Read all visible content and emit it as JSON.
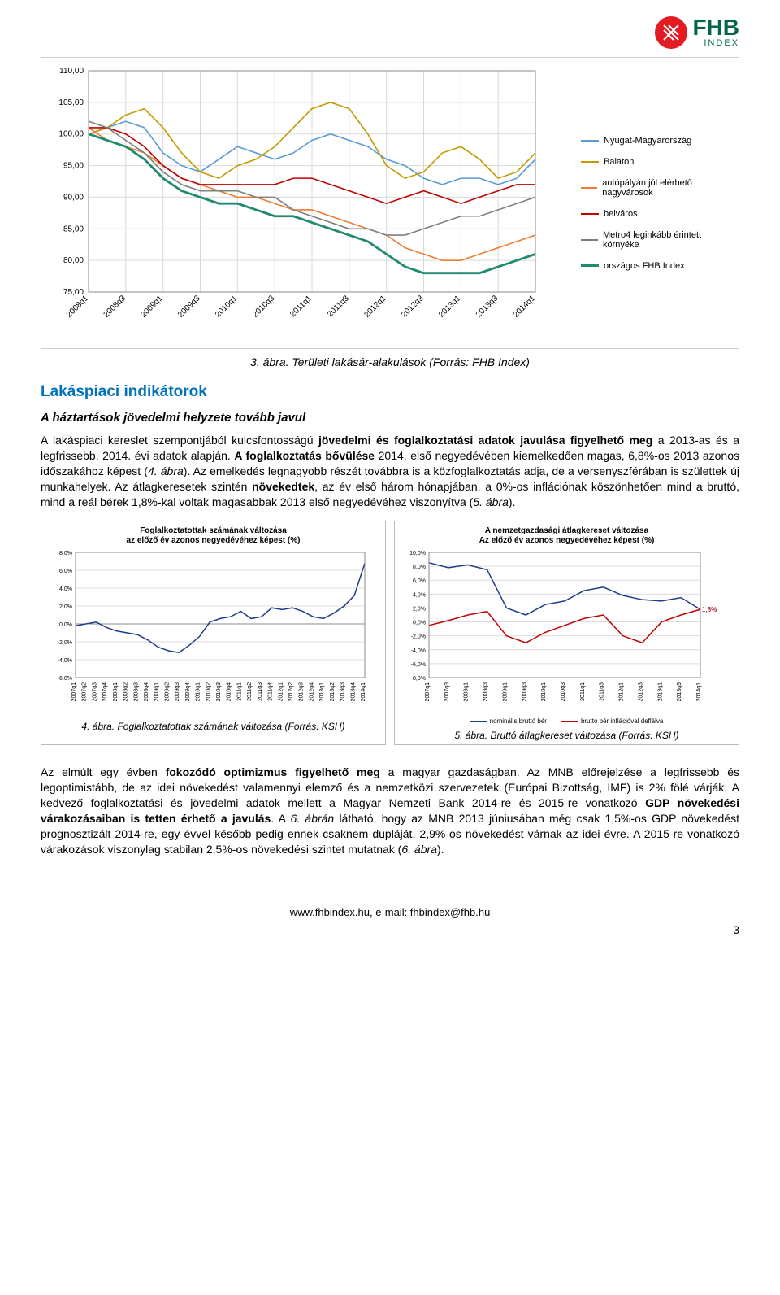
{
  "logo": {
    "brand": "FHB",
    "sub": "INDEX"
  },
  "chart3": {
    "type": "line",
    "ylim": [
      75,
      110
    ],
    "ytick_step": 5,
    "yticks": [
      "75,00",
      "80,00",
      "85,00",
      "90,00",
      "95,00",
      "100,00",
      "105,00",
      "110,00"
    ],
    "xlabels": [
      "2008q1",
      "2008q3",
      "2009q1",
      "2009q3",
      "2010q1",
      "2010q3",
      "2011q1",
      "2011q3",
      "2012q1",
      "2012q3",
      "2013q1",
      "2013q3",
      "2014q1"
    ],
    "xrot_deg": -45,
    "grid_color": "#d9d9d9",
    "background_color": "#ffffff",
    "lines": {
      "nyugat": {
        "label": "Nyugat-Magyarország",
        "color": "#5b9bd5",
        "width": 1.6,
        "values": [
          100,
          101,
          102,
          101,
          97,
          95,
          94,
          96,
          98,
          97,
          96,
          97,
          99,
          100,
          99,
          98,
          96,
          95,
          93,
          92,
          93,
          93,
          92,
          93,
          96
        ]
      },
      "balaton": {
        "label": "Balaton",
        "color": "#c49a00",
        "width": 1.6,
        "values": [
          100,
          101,
          103,
          104,
          101,
          97,
          94,
          93,
          95,
          96,
          98,
          101,
          104,
          105,
          104,
          100,
          95,
          93,
          94,
          97,
          98,
          96,
          93,
          94,
          97
        ]
      },
      "autopalya": {
        "label": "autópályán jól elérhető nagyvárosok",
        "color": "#ed7d31",
        "width": 1.6,
        "values": [
          101,
          99,
          98,
          97,
          95,
          93,
          92,
          91,
          90,
          90,
          89,
          88,
          88,
          87,
          86,
          85,
          84,
          82,
          81,
          80,
          80,
          81,
          82,
          83,
          84
        ]
      },
      "belvaros": {
        "label": "belváros",
        "color": "#c00000",
        "width": 1.6,
        "values": [
          101,
          101,
          100,
          98,
          95,
          93,
          92,
          92,
          92,
          92,
          92,
          93,
          93,
          92,
          91,
          90,
          89,
          90,
          91,
          90,
          89,
          90,
          91,
          92,
          92
        ]
      },
      "metro4": {
        "label": "Metro4 leginkább érintett környéke",
        "color": "#7f7f7f",
        "width": 1.6,
        "values": [
          102,
          101,
          99,
          97,
          94,
          92,
          91,
          91,
          91,
          90,
          90,
          88,
          87,
          86,
          85,
          85,
          84,
          84,
          85,
          86,
          87,
          87,
          88,
          89,
          90
        ]
      },
      "orszagos": {
        "label": "országos FHB Index",
        "color": "#1f8a70",
        "width": 2.8,
        "values": [
          100,
          99,
          98,
          96,
          93,
          91,
          90,
          89,
          89,
          88,
          87,
          87,
          86,
          85,
          84,
          83,
          81,
          79,
          78,
          78,
          78,
          78,
          79,
          80,
          81
        ]
      }
    },
    "legend_fontsize": 11,
    "tick_fontsize": 10
  },
  "caption3": "3. ábra. Területi lakásár-alakulások (Forrás: FHB Index)",
  "section_title": "Lakáspiaci indikátorok",
  "sub_title": "A háztartások jövedelmi helyzete tovább javul",
  "para1": "A lakáspiaci kereslet szempontjából kulcsfontosságú jövedelmi és foglalkoztatási adatok javulása figyelhető meg a 2013-as és a legfrissebb, 2014. évi adatok alapján. A foglalkoztatás bővülése 2014. első negyedévében kiemelkedően magas, 6,8%-os 2013 azonos időszakához képest (4. ábra). Az emelkedés legnagyobb részét továbbra is a közfoglalkoztatás adja, de a versenyszférában is születtek új munkahelyek. Az átlagkeresetek szintén növekedtek, az év első három hónapjában, a 0%-os inflációnak köszönhetően mind a bruttó, mind a reál bérek 1,8%-kal voltak magasabbak 2013 első negyedévéhez viszonyítva (5. ábra).",
  "chart4": {
    "type": "line",
    "title": "Foglalkoztatottak számának változása\naz előző év azonos negyedévéhez képest (%)",
    "ylim": [
      -6,
      8
    ],
    "ytick_step": 2,
    "yticks": [
      "-6,0%",
      "-4,0%",
      "-2,0%",
      "0,0%",
      "2,0%",
      "4,0%",
      "6,0%",
      "8,0%"
    ],
    "xlabels": [
      "2007q1",
      "2007q2",
      "2007q3",
      "2007q4",
      "2008q1",
      "2008q2",
      "2008q3",
      "2008q4",
      "2009q1",
      "2009q2",
      "2009q3",
      "2009q4",
      "2010q1",
      "2010q2",
      "2010q3",
      "2010q4",
      "2011q1",
      "2011q2",
      "2011q3",
      "2011q4",
      "2012q1",
      "2012q2",
      "2012q3",
      "2012q4",
      "2013q1",
      "2013q2",
      "2013q3",
      "2013q4",
      "2014q1"
    ],
    "values": [
      -0.2,
      0.0,
      0.2,
      -0.4,
      -0.8,
      -1.0,
      -1.2,
      -1.8,
      -2.6,
      -3.0,
      -3.2,
      -2.4,
      -1.4,
      0.2,
      0.6,
      0.8,
      1.4,
      0.6,
      0.8,
      1.8,
      1.6,
      1.8,
      1.4,
      0.8,
      0.6,
      1.2,
      2.0,
      3.2,
      6.8
    ],
    "color": "#1f3c88",
    "width": 1.5,
    "grid_color": "#dcdcdc",
    "tick_fontsize": 7,
    "title_fontsize": 10
  },
  "chart5": {
    "type": "line",
    "title": "A nemzetgazdasági átlagkereset változása\nAz előző év azonos negyedévéhez képest (%)",
    "ylim": [
      -8,
      10
    ],
    "ytick_step": 2,
    "yticks": [
      "-8,0%",
      "-6,0%",
      "-4,0%",
      "-2,0%",
      "0,0%",
      "2,0%",
      "4,0%",
      "6,0%",
      "8,0%",
      "10,0%"
    ],
    "xlabels": [
      "2007q1",
      "2007q3",
      "2008q1",
      "2008q3",
      "2009q1",
      "2009q3",
      "2010q1",
      "2010q3",
      "2011q1",
      "2011q3",
      "2012q1",
      "2012q3",
      "2013q1",
      "2013q3",
      "2014q1"
    ],
    "series": {
      "nominal": {
        "label": "nominális bruttó bér",
        "color": "#1f3c88",
        "width": 1.5,
        "values": [
          8.5,
          7.8,
          8.2,
          7.5,
          2.0,
          1.0,
          2.5,
          3.0,
          4.5,
          5.0,
          3.8,
          3.2,
          3.0,
          3.5,
          1.8
        ],
        "end_label": "1,8%"
      },
      "real": {
        "label": "bruttó bér inflációval deflálva",
        "color": "#c00000",
        "width": 1.5,
        "values": [
          -0.5,
          0.2,
          1.0,
          1.5,
          -2.0,
          -3.0,
          -1.5,
          -0.5,
          0.5,
          1.0,
          -2.0,
          -3.0,
          0.0,
          1.0,
          1.8
        ],
        "end_label": "1,8%"
      }
    },
    "grid_color": "#dcdcdc",
    "tick_fontsize": 7,
    "title_fontsize": 10,
    "legend_fontsize": 8
  },
  "caption4": "4. ábra. Foglalkoztatottak számának változása (Forrás: KSH)",
  "caption5": "5. ábra. Bruttó átlagkereset változása (Forrás: KSH)",
  "para2": "Az elmúlt egy évben fokozódó optimizmus figyelhető meg a magyar gazdaságban. Az MNB előrejelzése a legfrissebb és legoptimistább, de az idei növekedést valamennyi elemző és a nemzetközi szervezetek (Európai Bizottság, IMF) is 2% fölé várják. A kedvező foglalkoztatási és jövedelmi adatok mellett a Magyar Nemzeti Bank 2014-re és 2015-re vonatkozó GDP növekedési várakozásaiban is tetten érhető a javulás. A 6. ábrán látható, hogy az MNB 2013 júniusában még csak 1,5%-os GDP növekedést prognosztizált 2014-re, egy évvel később pedig ennek csaknem dupláját, 2,9%-os növekedést várnak az idei évre. A 2015-re vonatkozó várakozások viszonylag stabilan 2,5%-os növekedési szintet mutatnak (6. ábra).",
  "footer": "www.fhbindex.hu, e-mail: fhbindex@fhb.hu",
  "page_number": "3"
}
